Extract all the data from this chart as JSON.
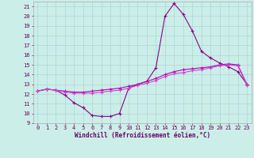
{
  "xlabel": "Windchill (Refroidissement éolien,°C)",
  "bg_color": "#cceee8",
  "grid_color": "#aad8d2",
  "line_color1": "#880088",
  "line_color2": "#bb00bb",
  "line_color3": "#cc44cc",
  "xlim": [
    -0.5,
    23.5
  ],
  "ylim": [
    9,
    21.5
  ],
  "xticks": [
    0,
    1,
    2,
    3,
    4,
    5,
    6,
    7,
    8,
    9,
    10,
    11,
    12,
    13,
    14,
    15,
    16,
    17,
    18,
    19,
    20,
    21,
    22,
    23
  ],
  "yticks": [
    9,
    10,
    11,
    12,
    13,
    14,
    15,
    16,
    17,
    18,
    19,
    20,
    21
  ],
  "curve1_x": [
    0,
    1,
    2,
    3,
    4,
    5,
    6,
    7,
    8,
    9,
    10,
    11,
    12,
    13,
    14,
    15,
    16,
    17,
    18,
    19,
    20,
    21,
    22,
    23
  ],
  "curve1_y": [
    12.3,
    12.5,
    12.4,
    11.9,
    11.1,
    10.6,
    9.8,
    9.7,
    9.7,
    10.0,
    12.6,
    13.0,
    13.3,
    14.7,
    20.0,
    21.3,
    20.2,
    18.5,
    16.4,
    15.7,
    15.2,
    14.8,
    14.3,
    13.0
  ],
  "curve2_x": [
    0,
    1,
    2,
    3,
    4,
    5,
    6,
    7,
    8,
    9,
    10,
    11,
    12,
    13,
    14,
    15,
    16,
    17,
    18,
    19,
    20,
    21,
    22,
    23
  ],
  "curve2_y": [
    12.3,
    12.5,
    12.4,
    12.3,
    12.2,
    12.2,
    12.3,
    12.4,
    12.5,
    12.6,
    12.8,
    13.0,
    13.3,
    13.6,
    14.0,
    14.3,
    14.5,
    14.6,
    14.7,
    14.8,
    15.0,
    15.1,
    15.0,
    13.0
  ],
  "curve3_x": [
    0,
    1,
    2,
    3,
    4,
    5,
    6,
    7,
    8,
    9,
    10,
    11,
    12,
    13,
    14,
    15,
    16,
    17,
    18,
    19,
    20,
    21,
    22,
    23
  ],
  "curve3_y": [
    12.3,
    12.5,
    12.4,
    12.2,
    12.1,
    12.1,
    12.1,
    12.2,
    12.3,
    12.4,
    12.6,
    12.9,
    13.1,
    13.4,
    13.8,
    14.1,
    14.2,
    14.4,
    14.5,
    14.7,
    14.9,
    15.0,
    14.9,
    12.9
  ],
  "marker": "+",
  "markersize": 3,
  "linewidth": 0.8,
  "tick_fontsize": 5,
  "label_fontsize": 5.5
}
